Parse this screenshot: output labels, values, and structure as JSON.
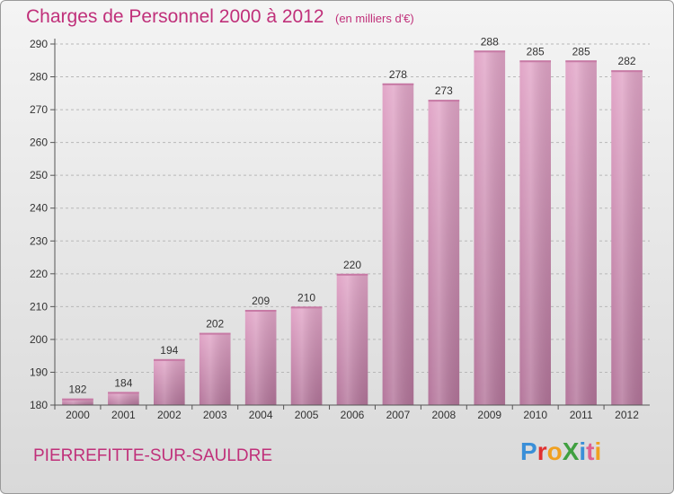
{
  "chart_data": {
    "type": "bar",
    "title": "Charges de Personnel 2000 à 2012",
    "subtitle": "(en milliers d'€)",
    "categories": [
      "2000",
      "2001",
      "2002",
      "2003",
      "2004",
      "2005",
      "2006",
      "2007",
      "2008",
      "2009",
      "2010",
      "2011",
      "2012"
    ],
    "values": [
      182,
      184,
      194,
      202,
      209,
      210,
      220,
      278,
      273,
      288,
      285,
      285,
      282
    ],
    "ylim": [
      180,
      290
    ],
    "yticks": [
      180,
      190,
      200,
      210,
      220,
      230,
      240,
      250,
      260,
      270,
      280,
      290
    ],
    "grid": true,
    "bar_color": "#d68fb6"
  },
  "footer": {
    "place": "PIERREFITTE-SUR-SAULDRE",
    "logo_text": "ProXiti"
  },
  "colors": {
    "accent": "#c0307a"
  }
}
